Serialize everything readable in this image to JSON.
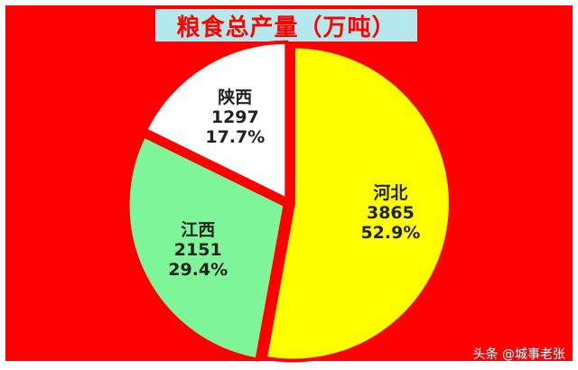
{
  "chart_data": {
    "type": "pie",
    "title": "粮食总产量（万吨）",
    "slices": [
      {
        "label": "河北",
        "value": 3865,
        "percent": "52.9%",
        "color": "#ffff00"
      },
      {
        "label": "江西",
        "value": 2151,
        "percent": "29.4%",
        "color": "#7ff59a"
      },
      {
        "label": "陕西",
        "value": 1297,
        "percent": "17.7%",
        "color": "#ffffff"
      }
    ],
    "start_angle_deg": 0,
    "direction": "clockwise",
    "legend": "none",
    "explode": "slight",
    "background_color": "#ff0000",
    "title_box_color": "#b5e8ec",
    "title_color": "#ff0000"
  },
  "watermark": "头条 @城事老张"
}
